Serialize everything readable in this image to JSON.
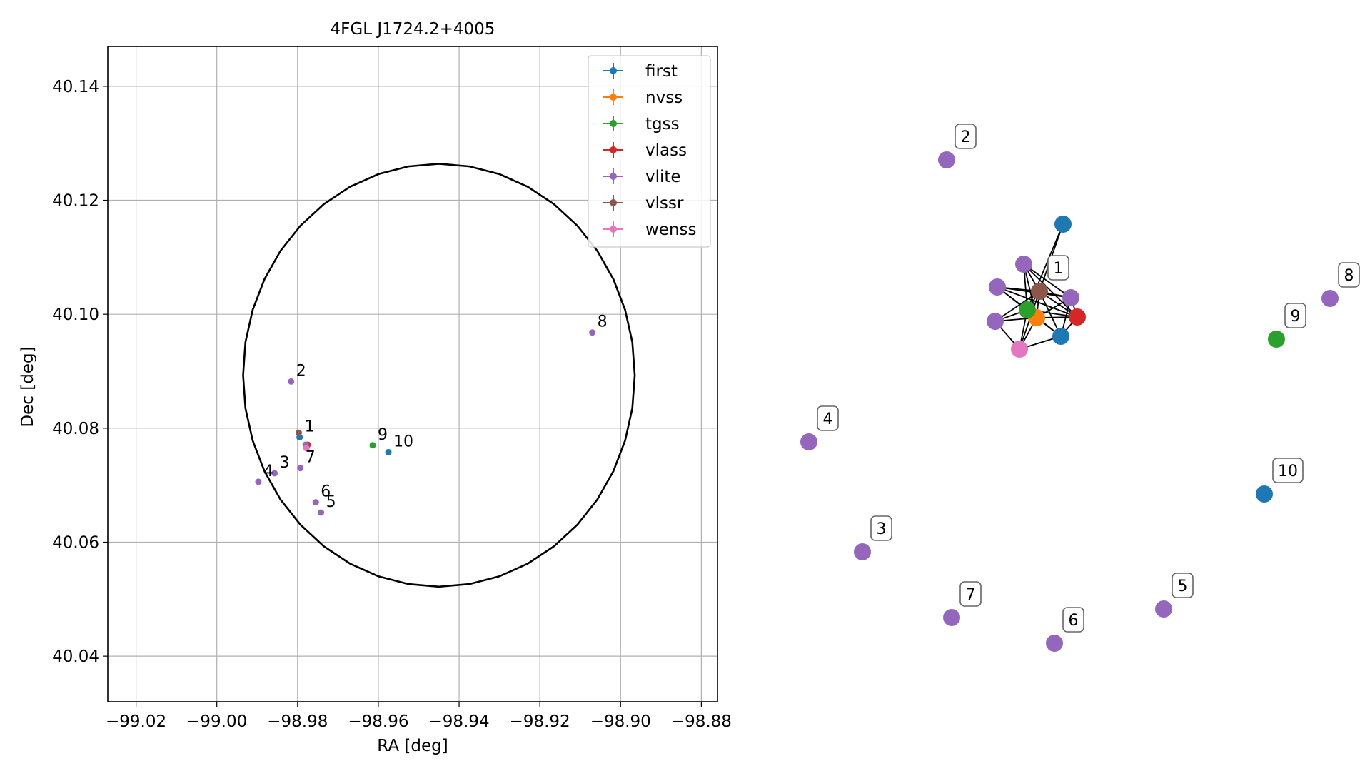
{
  "chart_data": [
    {
      "type": "scatter",
      "title": "4FGL J1724.2+4005",
      "xlabel": "RA [deg]",
      "ylabel": "Dec [deg]",
      "xlim": [
        -99.027,
        -98.876
      ],
      "ylim": [
        40.032,
        40.147
      ],
      "x_ticks": [
        -99.02,
        -99.0,
        -98.98,
        -98.96,
        -98.94,
        -98.92,
        -98.9,
        -98.88
      ],
      "x_tick_labels": [
        "−99.02",
        "−99.00",
        "−98.98",
        "−98.96",
        "−98.94",
        "−98.92",
        "−98.90",
        "−98.88"
      ],
      "y_ticks": [
        40.04,
        40.06,
        40.08,
        40.1,
        40.12,
        40.14
      ],
      "y_tick_labels": [
        "40.04",
        "40.06",
        "40.08",
        "40.10",
        "40.12",
        "40.14"
      ],
      "grid": true,
      "legend_position": "top-right",
      "series": [
        {
          "name": "first",
          "color": "#1f77b4",
          "points": [
            {
              "x": -98.9795,
              "y": 40.0784
            },
            {
              "x": -98.9575,
              "y": 40.0758
            }
          ]
        },
        {
          "name": "nvss",
          "color": "#ff7f0e",
          "points": [
            {
              "x": -98.9777,
              "y": 40.0768
            }
          ]
        },
        {
          "name": "tgss",
          "color": "#2ca02c",
          "points": [
            {
              "x": -98.9614,
              "y": 40.077
            }
          ]
        },
        {
          "name": "vlass",
          "color": "#d62728",
          "points": [
            {
              "x": -98.9775,
              "y": 40.0771
            }
          ]
        },
        {
          "name": "vlite",
          "color": "#9467bd",
          "points": [
            {
              "x": -98.978,
              "y": 40.0771
            },
            {
              "x": -98.9816,
              "y": 40.0882
            },
            {
              "x": -98.9857,
              "y": 40.0721
            },
            {
              "x": -98.9897,
              "y": 40.0706
            },
            {
              "x": -98.9742,
              "y": 40.0652
            },
            {
              "x": -98.9755,
              "y": 40.067
            },
            {
              "x": -98.9793,
              "y": 40.073
            },
            {
              "x": -98.907,
              "y": 40.0968
            }
          ]
        },
        {
          "name": "vlssr",
          "color": "#8c564b",
          "points": [
            {
              "x": -98.9797,
              "y": 40.0792
            }
          ]
        },
        {
          "name": "wenss",
          "color": "#e377c2",
          "points": [
            {
              "x": -98.9778,
              "y": 40.0765
            }
          ]
        }
      ],
      "circle": {
        "ra_center": -98.945,
        "dec_center": 40.0893,
        "ra_radius": 0.0485,
        "dec_radius": 0.0371
      },
      "annotations": [
        {
          "text": "1",
          "x": -98.9795,
          "y": 40.0784
        },
        {
          "text": "2",
          "x": -98.9816,
          "y": 40.0882
        },
        {
          "text": "3",
          "x": -98.9857,
          "y": 40.0721
        },
        {
          "text": "4",
          "x": -98.9897,
          "y": 40.0706
        },
        {
          "text": "5",
          "x": -98.9742,
          "y": 40.0652
        },
        {
          "text": "6",
          "x": -98.9755,
          "y": 40.067
        },
        {
          "text": "7",
          "x": -98.9793,
          "y": 40.073
        },
        {
          "text": "8",
          "x": -98.907,
          "y": 40.0968
        },
        {
          "text": "9",
          "x": -98.9614,
          "y": 40.077
        },
        {
          "text": "10",
          "x": -98.9575,
          "y": 40.0758
        }
      ]
    },
    {
      "type": "network",
      "groups": [
        {
          "label": "1",
          "nodes": [
            {
              "id": "1-first-a",
              "series": "first"
            },
            {
              "id": "1-first-b",
              "series": "first"
            },
            {
              "id": "1-nvss",
              "series": "nvss"
            },
            {
              "id": "1-tgss",
              "series": "tgss"
            },
            {
              "id": "1-vlass",
              "series": "vlass"
            },
            {
              "id": "1-vlite-a",
              "series": "vlite"
            },
            {
              "id": "1-vlite-b",
              "series": "vlite"
            },
            {
              "id": "1-vlite-c",
              "series": "vlite"
            },
            {
              "id": "1-vlite-d",
              "series": "vlite"
            },
            {
              "id": "1-vlssr",
              "series": "vlssr"
            },
            {
              "id": "1-wenss",
              "series": "wenss"
            }
          ]
        },
        {
          "label": "2",
          "nodes": [
            {
              "id": "2-vlite",
              "series": "vlite"
            }
          ]
        },
        {
          "label": "3",
          "nodes": [
            {
              "id": "3-vlite",
              "series": "vlite"
            }
          ]
        },
        {
          "label": "4",
          "nodes": [
            {
              "id": "4-vlite",
              "series": "vlite"
            }
          ]
        },
        {
          "label": "5",
          "nodes": [
            {
              "id": "5-vlite",
              "series": "vlite"
            }
          ]
        },
        {
          "label": "6",
          "nodes": [
            {
              "id": "6-vlite",
              "series": "vlite"
            }
          ]
        },
        {
          "label": "7",
          "nodes": [
            {
              "id": "7-vlite",
              "series": "vlite"
            }
          ]
        },
        {
          "label": "8",
          "nodes": [
            {
              "id": "8-vlite",
              "series": "vlite"
            }
          ]
        },
        {
          "label": "9",
          "nodes": [
            {
              "id": "9-tgss",
              "series": "tgss"
            }
          ]
        },
        {
          "label": "10",
          "nodes": [
            {
              "id": "10-first",
              "series": "first"
            }
          ]
        }
      ],
      "edges": [
        [
          "1-first-a",
          "1-vlssr"
        ],
        [
          "1-first-a",
          "1-tgss"
        ],
        [
          "1-vlite-a",
          "1-vlssr"
        ],
        [
          "1-vlite-a",
          "1-tgss"
        ],
        [
          "1-vlite-a",
          "1-nvss"
        ],
        [
          "1-vlite-a",
          "1-vlass"
        ],
        [
          "1-vlite-a",
          "1-vlite-d"
        ],
        [
          "1-vlite-b",
          "1-vlssr"
        ],
        [
          "1-vlite-b",
          "1-tgss"
        ],
        [
          "1-vlite-b",
          "1-nvss"
        ],
        [
          "1-vlite-b",
          "1-vlass"
        ],
        [
          "1-vlite-b",
          "1-vlite-d"
        ],
        [
          "1-vlite-c",
          "1-vlssr"
        ],
        [
          "1-vlite-c",
          "1-tgss"
        ],
        [
          "1-vlite-c",
          "1-nvss"
        ],
        [
          "1-vlite-c",
          "1-wenss"
        ],
        [
          "1-vlite-d",
          "1-vlssr"
        ],
        [
          "1-vlite-d",
          "1-nvss"
        ],
        [
          "1-vlite-d",
          "1-vlass"
        ],
        [
          "1-vlite-d",
          "1-first-b"
        ],
        [
          "1-vlssr",
          "1-tgss"
        ],
        [
          "1-vlssr",
          "1-nvss"
        ],
        [
          "1-vlssr",
          "1-vlass"
        ],
        [
          "1-vlssr",
          "1-wenss"
        ],
        [
          "1-vlssr",
          "1-first-b"
        ],
        [
          "1-tgss",
          "1-nvss"
        ],
        [
          "1-tgss",
          "1-vlass"
        ],
        [
          "1-tgss",
          "1-wenss"
        ],
        [
          "1-tgss",
          "1-first-b"
        ],
        [
          "1-nvss",
          "1-vlass"
        ],
        [
          "1-nvss",
          "1-wenss"
        ],
        [
          "1-nvss",
          "1-first-b"
        ],
        [
          "1-vlass",
          "1-first-b"
        ],
        [
          "1-wenss",
          "1-first-b"
        ]
      ]
    }
  ]
}
